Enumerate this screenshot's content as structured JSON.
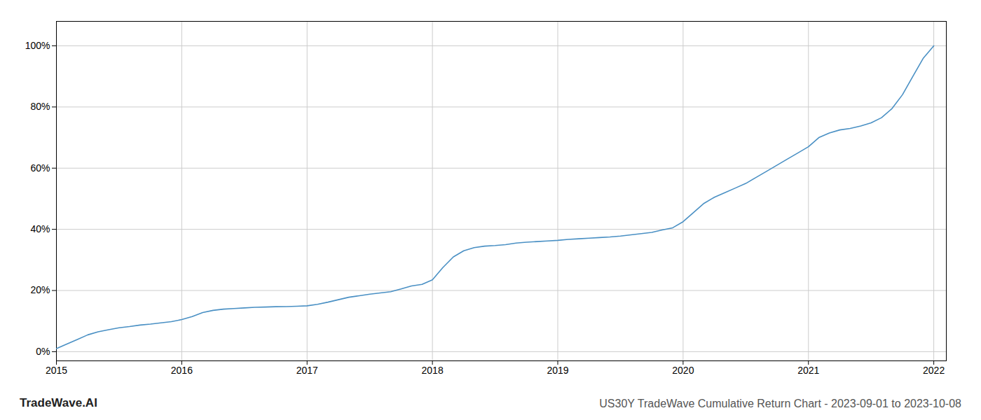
{
  "chart_data": {
    "type": "line",
    "title": "US30Y TradeWave Cumulative Return Chart - 2023-09-01 to 2023-10-08",
    "annotations": [
      "TradeWave.AI"
    ],
    "color": "#4a90c4",
    "x": [
      2015.0,
      2015.083,
      2015.167,
      2015.25,
      2015.333,
      2015.417,
      2015.5,
      2015.583,
      2015.667,
      2015.75,
      2015.833,
      2015.917,
      2016.0,
      2016.083,
      2016.167,
      2016.25,
      2016.333,
      2016.417,
      2016.5,
      2016.583,
      2016.667,
      2016.75,
      2016.833,
      2016.917,
      2017.0,
      2017.083,
      2017.167,
      2017.25,
      2017.333,
      2017.417,
      2017.5,
      2017.583,
      2017.667,
      2017.75,
      2017.833,
      2017.917,
      2018.0,
      2018.083,
      2018.167,
      2018.25,
      2018.333,
      2018.417,
      2018.5,
      2018.583,
      2018.667,
      2018.75,
      2018.833,
      2018.917,
      2019.0,
      2019.083,
      2019.167,
      2019.25,
      2019.333,
      2019.417,
      2019.5,
      2019.583,
      2019.667,
      2019.75,
      2019.833,
      2019.917,
      2020.0,
      2020.083,
      2020.167,
      2020.25,
      2020.333,
      2020.417,
      2020.5,
      2020.583,
      2020.667,
      2020.75,
      2020.833,
      2020.917,
      2021.0,
      2021.083,
      2021.167,
      2021.25,
      2021.333,
      2021.417,
      2021.5,
      2021.583,
      2021.667,
      2021.75,
      2021.833,
      2021.917,
      2022.0
    ],
    "values": [
      1.0,
      2.5,
      4.0,
      5.5,
      6.5,
      7.2,
      7.8,
      8.2,
      8.7,
      9.0,
      9.4,
      9.8,
      10.5,
      11.5,
      12.8,
      13.5,
      13.9,
      14.1,
      14.3,
      14.5,
      14.6,
      14.7,
      14.75,
      14.85,
      15.0,
      15.5,
      16.2,
      17.0,
      17.8,
      18.3,
      18.8,
      19.2,
      19.6,
      20.5,
      21.5,
      22.0,
      23.5,
      27.5,
      31.0,
      33.0,
      34.0,
      34.5,
      34.7,
      35.0,
      35.5,
      35.8,
      36.0,
      36.2,
      36.4,
      36.7,
      36.9,
      37.1,
      37.3,
      37.5,
      37.8,
      38.2,
      38.6,
      39.0,
      39.8,
      40.5,
      42.5,
      45.5,
      48.5,
      50.5,
      52.0,
      53.5,
      55.0,
      57.0,
      59.0,
      61.0,
      63.0,
      65.0,
      67.0,
      70.0,
      71.5,
      72.5,
      73.0,
      73.8,
      74.8,
      76.5,
      79.5,
      84.0,
      90.0,
      96.0,
      100.0
    ],
    "xlim": [
      2015.0,
      2022.1
    ],
    "ylim": [
      -3,
      108
    ],
    "xticks": [
      2015,
      2016,
      2017,
      2018,
      2019,
      2020,
      2021,
      2022
    ],
    "yticks": [
      {
        "value": 0,
        "label": "0%"
      },
      {
        "value": 20,
        "label": "20%"
      },
      {
        "value": 40,
        "label": "40%"
      },
      {
        "value": 60,
        "label": "60%"
      },
      {
        "value": 80,
        "label": "80%"
      },
      {
        "value": 100,
        "label": "100%"
      }
    ],
    "grid": true
  }
}
